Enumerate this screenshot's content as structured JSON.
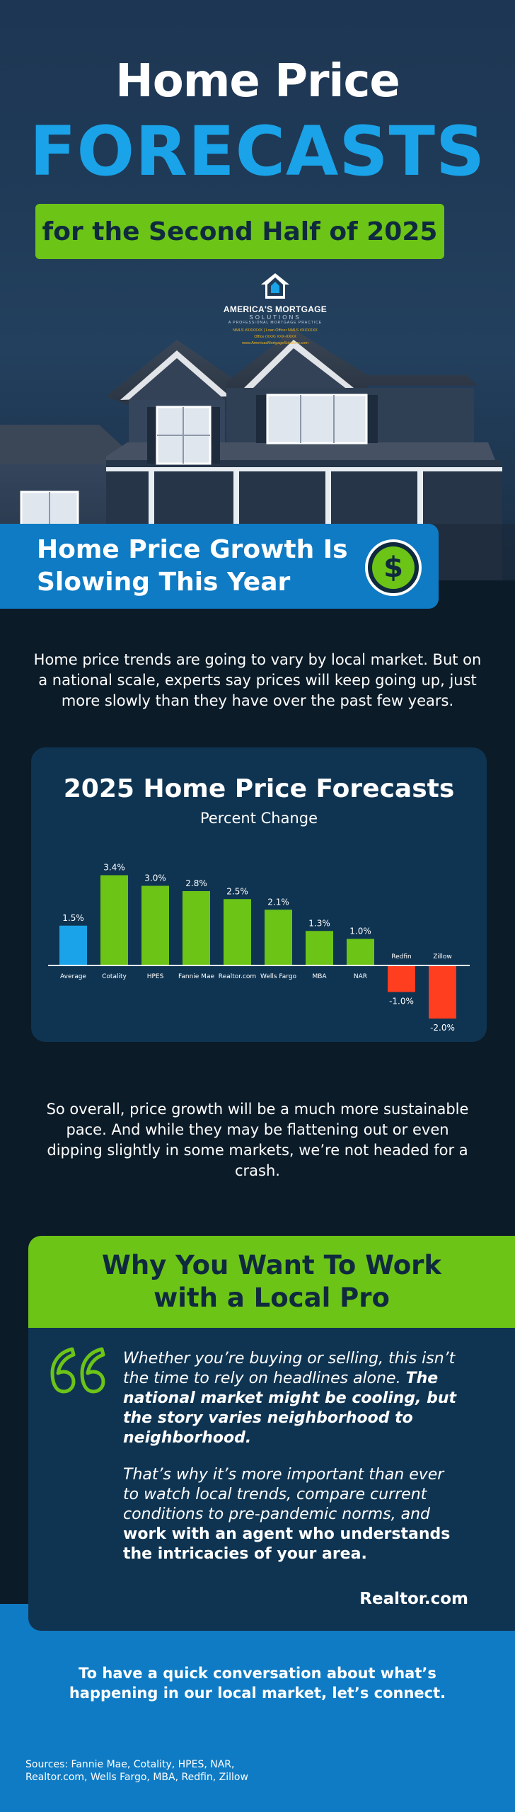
{
  "hero": {
    "title_line1": "Home Price",
    "title_line2": "FORECASTS",
    "banner": "for the Second Half of 2025"
  },
  "logo": {
    "name": "AMERICA'S MORTGAGE",
    "sub": "SOLUTIONS",
    "tagline": "A PROFESSIONAL MORTGAGE PRACTICE",
    "contact_1": "NMLS #XXXXXX | Loan Officer NMLS #XXXXXX",
    "contact_2": "Office (XXX) XXX-XXXX",
    "contact_3": "www.AmericasMortgageSolutions.com"
  },
  "section1": {
    "title": "Home Price Growth Is Slowing This Year",
    "badge_symbol": "$",
    "intro": "Home price trends are going to vary by local market. But on a national scale, experts say prices will keep going up, just more slowly than they have over the past few years."
  },
  "chart_data": {
    "type": "bar",
    "title": "2025 Home Price Forecasts",
    "subtitle": "Percent Change",
    "categories": [
      "Average",
      "Cotality",
      "HPES",
      "Fannie Mae",
      "Realtor.com",
      "Wells Fargo",
      "MBA",
      "NAR",
      "Redfin",
      "Zillow"
    ],
    "values": [
      1.5,
      3.4,
      3.0,
      2.8,
      2.5,
      2.1,
      1.3,
      1.0,
      -1.0,
      -2.0
    ],
    "value_labels": [
      "1.5%",
      "3.4%",
      "3.0%",
      "2.8%",
      "2.5%",
      "2.1%",
      "1.3%",
      "1.0%",
      "-1.0%",
      "-2.0%"
    ],
    "colors": {
      "average": "#1aa3e8",
      "positive": "#6cc417",
      "negative": "#ff3d1f"
    },
    "ylim": [
      -2.0,
      3.4
    ]
  },
  "summary": "So overall, price growth will be a much more sustainable pace. And while they may be flattening out or even dipping slightly in some markets, we’re not headed for a crash.",
  "pro": {
    "title": "Why You Want To Work with a Local Pro",
    "p1_normal": "Whether you’re buying or selling, this isn’t the time to rely on headlines alone. ",
    "p1_bold": "The national market might be cooling, but the story varies neighborhood to neighborhood.",
    "p2_normal": "That’s why it’s more important than ever to watch local trends, compare current conditions to pre-pandemic norms, and ",
    "p2_bold": "work with an agent who understands the intricacies of your area.",
    "source": "Realtor.com"
  },
  "cta": "To have a quick conversation about what’s happening in our local market, let’s connect.",
  "sources": "Sources: Fannie Mae, Cotality, HPES, NAR, Realtor.com, Wells Fargo, MBA, Redfin, Zillow",
  "colors": {
    "navy": "#0f3452",
    "blue": "#0f7bc4",
    "accent_blue": "#1aa3e8",
    "green": "#6cc417"
  }
}
